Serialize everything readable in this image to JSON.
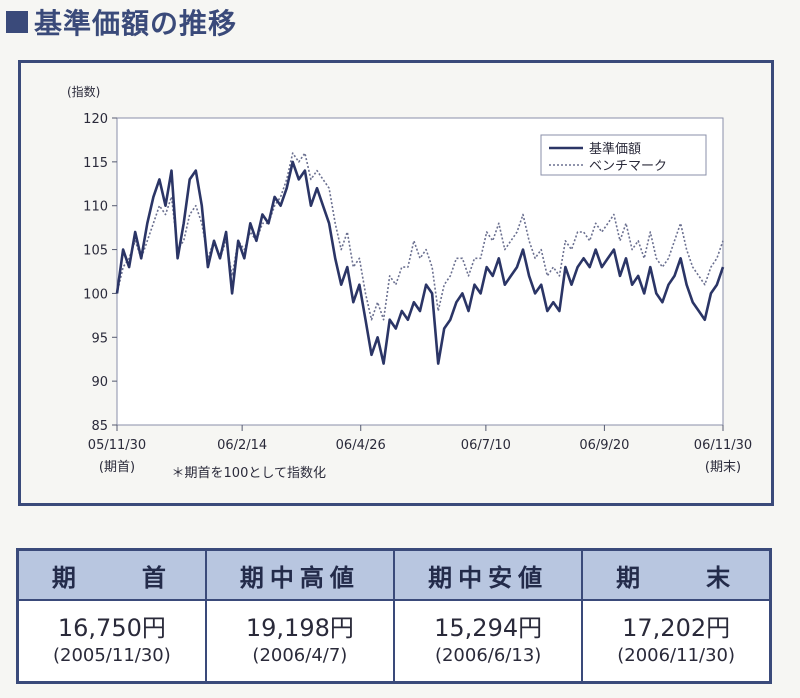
{
  "title": "基準価額の推移",
  "chart_data": {
    "type": "line",
    "ylabel": "(指数)",
    "ylim": [
      85,
      120
    ],
    "yticks": [
      85,
      90,
      95,
      100,
      105,
      110,
      115,
      120
    ],
    "xticks": [
      {
        "label": "05/11/30",
        "sublabel": "(期首)",
        "pos": 0
      },
      {
        "label": "06/2/14",
        "sublabel": "",
        "pos": 0.2065
      },
      {
        "label": "06/4/26",
        "sublabel": "",
        "pos": 0.4022
      },
      {
        "label": "06/7/10",
        "sublabel": "",
        "pos": 0.6087
      },
      {
        "label": "06/9/20",
        "sublabel": "",
        "pos": 0.8043
      },
      {
        "label": "06/11/30",
        "sublabel": "(期末)",
        "pos": 1
      }
    ],
    "note": "＊期首を100として指数化",
    "legend_position": "top-right",
    "x": [
      0,
      0.01,
      0.02,
      0.03,
      0.04,
      0.05,
      0.06,
      0.07,
      0.08,
      0.09,
      0.1,
      0.11,
      0.12,
      0.13,
      0.14,
      0.15,
      0.16,
      0.17,
      0.18,
      0.19,
      0.2,
      0.21,
      0.22,
      0.23,
      0.24,
      0.25,
      0.26,
      0.27,
      0.28,
      0.29,
      0.3,
      0.31,
      0.32,
      0.33,
      0.34,
      0.35,
      0.36,
      0.37,
      0.38,
      0.39,
      0.4,
      0.41,
      0.42,
      0.43,
      0.44,
      0.45,
      0.46,
      0.47,
      0.48,
      0.49,
      0.5,
      0.51,
      0.52,
      0.53,
      0.54,
      0.55,
      0.56,
      0.57,
      0.58,
      0.59,
      0.6,
      0.61,
      0.62,
      0.63,
      0.64,
      0.65,
      0.66,
      0.67,
      0.68,
      0.69,
      0.7,
      0.71,
      0.72,
      0.73,
      0.74,
      0.75,
      0.76,
      0.77,
      0.78,
      0.79,
      0.8,
      0.81,
      0.82,
      0.83,
      0.84,
      0.85,
      0.86,
      0.87,
      0.88,
      0.89,
      0.9,
      0.91,
      0.92,
      0.93,
      0.94,
      0.95,
      0.96,
      0.97,
      0.98,
      0.99,
      1.0
    ],
    "series": [
      {
        "name": "基準価額",
        "style": "solid",
        "color": "#2b3566",
        "values": [
          100,
          105,
          103,
          107,
          104,
          108,
          111,
          113,
          110,
          114,
          104,
          108,
          113,
          114,
          110,
          103,
          106,
          104,
          107,
          100,
          106,
          104,
          108,
          106,
          109,
          108,
          111,
          110,
          112,
          115,
          113,
          114,
          110,
          112,
          110,
          108,
          104,
          101,
          103,
          99,
          101,
          97,
          93,
          95,
          92,
          97,
          96,
          98,
          97,
          99,
          98,
          101,
          100,
          92,
          96,
          97,
          99,
          100,
          98,
          101,
          100,
          103,
          102,
          104,
          101,
          102,
          103,
          105,
          102,
          100,
          101,
          98,
          99,
          98,
          103,
          101,
          103,
          104,
          103,
          105,
          103,
          104,
          105,
          102,
          104,
          101,
          102,
          100,
          103,
          100,
          99,
          101,
          102,
          104,
          101,
          99,
          98,
          97,
          100,
          101,
          103
        ]
      },
      {
        "name": "ベンチマーク",
        "style": "dotted",
        "color": "#6b7090",
        "values": [
          100,
          103,
          104,
          106,
          104,
          106,
          108,
          110,
          109,
          111,
          105,
          106,
          109,
          110,
          108,
          104,
          106,
          104,
          106,
          102,
          106,
          105,
          107,
          106,
          108,
          108,
          110,
          111,
          113,
          116,
          115,
          116,
          113,
          114,
          113,
          112,
          108,
          105,
          107,
          103,
          104,
          100,
          97,
          99,
          97,
          102,
          101,
          103,
          103,
          106,
          104,
          105,
          103,
          98,
          101,
          102,
          104,
          104,
          102,
          104,
          104,
          107,
          106,
          108,
          105,
          106,
          107,
          109,
          106,
          104,
          105,
          102,
          103,
          102,
          106,
          105,
          107,
          107,
          106,
          108,
          107,
          108,
          109,
          106,
          108,
          105,
          106,
          104,
          107,
          104,
          103,
          104,
          106,
          108,
          105,
          103,
          102,
          101,
          103,
          104,
          106
        ]
      }
    ]
  },
  "table": {
    "headers": [
      "期　　首",
      "期中高値",
      "期中安値",
      "期　　末"
    ],
    "cells": [
      {
        "price": "16,750円",
        "date": "(2005/11/30)"
      },
      {
        "price": "19,198円",
        "date": "(2006/4/7)"
      },
      {
        "price": "15,294円",
        "date": "(2006/6/13)"
      },
      {
        "price": "17,202円",
        "date": "(2006/11/30)"
      }
    ]
  }
}
